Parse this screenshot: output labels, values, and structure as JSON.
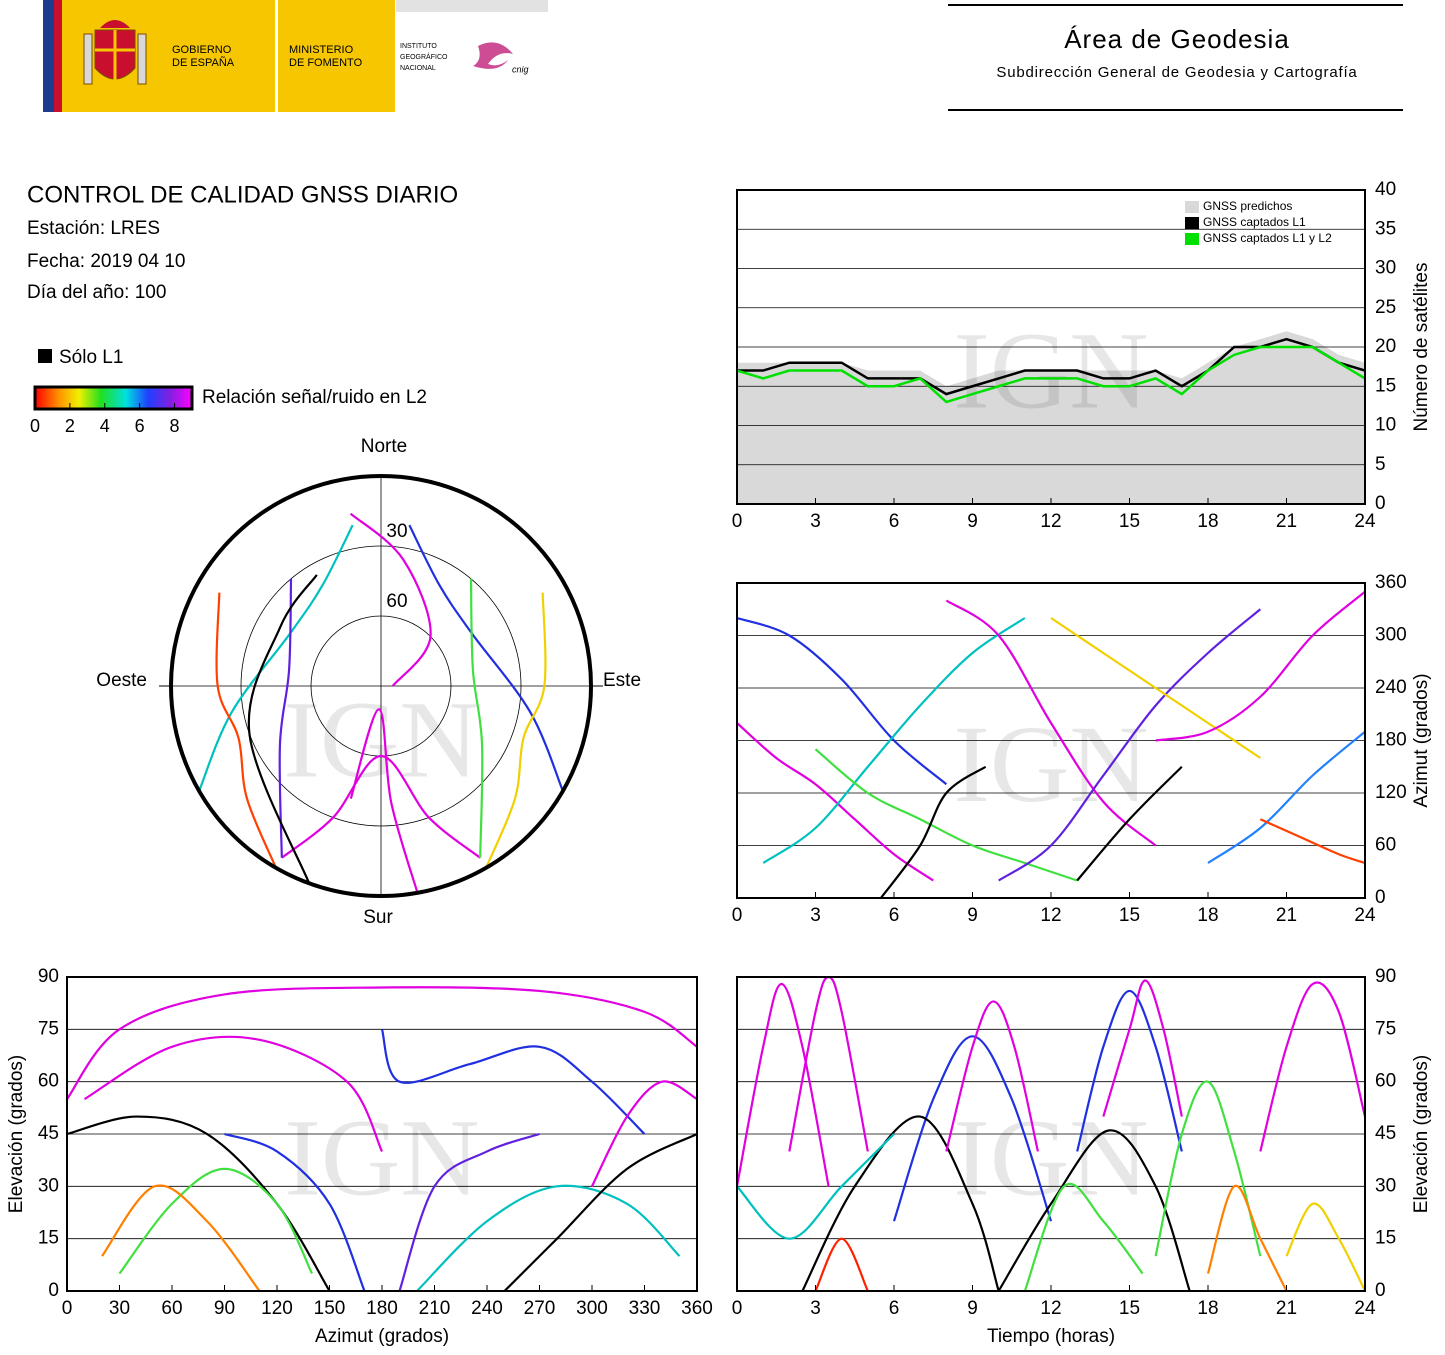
{
  "header": {
    "gov": [
      "GOBIERNO",
      "DE ESPAÑA"
    ],
    "ministry": [
      "MINISTERIO",
      "DE FOMENTO"
    ],
    "institute": [
      "INSTITUTO",
      "GEOGRÁFICO",
      "NACIONAL"
    ],
    "cnig": "cnig",
    "area": "Área de Geodesia",
    "subarea": "Subdirección General de Geodesia y Cartografía"
  },
  "report": {
    "title": "CONTROL DE CALIDAD GNSS DIARIO",
    "station": "Estación: LRES",
    "date": "Fecha: 2019 04 10",
    "doy": "Día del año: 100"
  },
  "legend": {
    "l1_only": "Sólo L1",
    "l1_color": "#000000",
    "snr_label": "Relación señal/ruido en L2",
    "snr_range": [
      0,
      9
    ],
    "snr_ticks": [
      0,
      2,
      4,
      6,
      8
    ]
  },
  "watermark": "IGN",
  "chart_data": [
    {
      "type": "line",
      "ylabel": "Número de satélites",
      "y_axis_side": "right",
      "xlim": [
        0,
        24
      ],
      "xticks": [
        0,
        3,
        6,
        9,
        12,
        15,
        18,
        21,
        24
      ],
      "ylim": [
        0,
        40
      ],
      "yticks": [
        0,
        5,
        10,
        15,
        20,
        25,
        30,
        35,
        40
      ],
      "grid": true,
      "legend": "upper right",
      "series": [
        {
          "name": "GNSS predichos",
          "color": "#d9d9d9",
          "style": "area",
          "x": [
            0,
            1,
            2,
            3,
            4,
            5,
            6,
            7,
            8,
            9,
            10,
            11,
            12,
            13,
            14,
            15,
            16,
            17,
            18,
            19,
            20,
            21,
            22,
            23,
            24
          ],
          "values": [
            18,
            18,
            18,
            18,
            18,
            17,
            17,
            17,
            15,
            16,
            17,
            17,
            17,
            17,
            17,
            17,
            17,
            16,
            18,
            20,
            21,
            22,
            21,
            19,
            18
          ]
        },
        {
          "name": "GNSS captados L1",
          "color": "#000000",
          "style": "line",
          "x": [
            0,
            1,
            2,
            3,
            4,
            5,
            6,
            7,
            8,
            9,
            10,
            11,
            12,
            13,
            14,
            15,
            16,
            17,
            18,
            19,
            20,
            21,
            22,
            23,
            24
          ],
          "values": [
            17,
            17,
            18,
            18,
            18,
            16,
            16,
            16,
            14,
            15,
            16,
            17,
            17,
            17,
            16,
            16,
            17,
            15,
            17,
            20,
            20,
            21,
            20,
            18,
            17
          ]
        },
        {
          "name": "GNSS captados L1 y L2",
          "color": "#00e000",
          "style": "line",
          "x": [
            0,
            1,
            2,
            3,
            4,
            5,
            6,
            7,
            8,
            9,
            10,
            11,
            12,
            13,
            14,
            15,
            16,
            17,
            18,
            19,
            20,
            21,
            22,
            23,
            24
          ],
          "values": [
            17,
            16,
            17,
            17,
            17,
            15,
            15,
            16,
            13,
            14,
            15,
            16,
            16,
            16,
            15,
            15,
            16,
            14,
            17,
            19,
            20,
            20,
            20,
            18,
            16
          ]
        }
      ]
    },
    {
      "type": "line",
      "ylabel": "Azimut (grados)",
      "y_axis_side": "right",
      "xlim": [
        0,
        24
      ],
      "xticks": [
        0,
        3,
        6,
        9,
        12,
        15,
        18,
        21,
        24
      ],
      "ylim": [
        0,
        360
      ],
      "yticks": [
        0,
        60,
        120,
        180,
        240,
        300,
        360
      ],
      "grid": true,
      "series": [
        {
          "color": "#e000e0",
          "x": [
            0,
            1.5,
            3,
            4.5,
            6,
            7.5
          ],
          "values": [
            200,
            160,
            130,
            90,
            50,
            20
          ]
        },
        {
          "color": "#2030e0",
          "x": [
            0,
            2,
            4,
            6,
            8
          ],
          "values": [
            320,
            300,
            250,
            180,
            130
          ]
        },
        {
          "color": "#00c0c0",
          "x": [
            1,
            3,
            5,
            7,
            9,
            11
          ],
          "values": [
            40,
            80,
            150,
            220,
            280,
            320
          ]
        },
        {
          "color": "#40e040",
          "x": [
            3,
            5,
            7,
            9,
            11,
            13
          ],
          "values": [
            170,
            120,
            90,
            60,
            40,
            20
          ]
        },
        {
          "color": "#000000",
          "x": [
            5.5,
            7,
            8,
            9.5
          ],
          "values": [
            0,
            60,
            120,
            150
          ]
        },
        {
          "color": "#e000e0",
          "x": [
            8,
            10,
            12,
            14,
            16
          ],
          "values": [
            340,
            300,
            200,
            110,
            60
          ]
        },
        {
          "color": "#6020e0",
          "x": [
            10,
            12,
            14,
            16,
            18,
            20
          ],
          "values": [
            20,
            60,
            140,
            220,
            280,
            330
          ]
        },
        {
          "color": "#f0d000",
          "x": [
            12,
            14,
            16,
            18,
            20
          ],
          "values": [
            320,
            280,
            240,
            200,
            160
          ]
        },
        {
          "color": "#e000e0",
          "x": [
            16,
            18,
            20,
            22,
            24
          ],
          "values": [
            180,
            190,
            230,
            300,
            350
          ]
        },
        {
          "color": "#2080ff",
          "x": [
            18,
            20,
            22,
            24
          ],
          "values": [
            40,
            80,
            140,
            190
          ]
        },
        {
          "color": "#ff4000",
          "x": [
            20,
            21.5,
            23,
            24
          ],
          "values": [
            90,
            70,
            50,
            40
          ]
        },
        {
          "color": "#000000",
          "x": [
            13,
            15,
            17
          ],
          "values": [
            20,
            90,
            150
          ]
        }
      ]
    },
    {
      "type": "polar",
      "directions": {
        "north": "Norte",
        "south": "Sur",
        "east": "Este",
        "west": "Oeste"
      },
      "rlim": [
        0,
        90
      ],
      "rings": [
        30,
        60
      ],
      "series": [
        {
          "color": "#e000e0",
          "az": [
            150,
            160,
            180,
            200,
            210
          ],
          "el": [
            5,
            30,
            60,
            30,
            5
          ]
        },
        {
          "color": "#2030e0",
          "az": [
            120,
            100,
            60,
            30,
            10
          ],
          "el": [
            0,
            25,
            45,
            40,
            20
          ]
        },
        {
          "color": "#00c0c0",
          "az": [
            240,
            260,
            300,
            330,
            350
          ],
          "el": [
            0,
            25,
            45,
            40,
            20
          ]
        },
        {
          "color": "#e000e0",
          "az": [
            170,
            175,
            185,
            195
          ],
          "el": [
            0,
            40,
            80,
            40
          ]
        },
        {
          "color": "#40e040",
          "az": [
            40,
            80,
            120,
            150
          ],
          "el": [
            30,
            50,
            40,
            5
          ]
        },
        {
          "color": "#6020e0",
          "az": [
            320,
            280,
            240,
            210
          ],
          "el": [
            30,
            50,
            40,
            5
          ]
        },
        {
          "color": "#000000",
          "az": [
            200,
            250,
            300,
            330
          ],
          "el": [
            0,
            30,
            40,
            35
          ]
        },
        {
          "color": "#f0d000",
          "az": [
            60,
            90,
            110,
            130,
            150
          ],
          "el": [
            10,
            20,
            25,
            15,
            0
          ]
        },
        {
          "color": "#ff4000",
          "az": [
            300,
            270,
            250,
            230,
            210
          ],
          "el": [
            10,
            20,
            25,
            15,
            0
          ]
        },
        {
          "color": "#e000e0",
          "az": [
            350,
            10,
            45,
            90
          ],
          "el": [
            15,
            35,
            60,
            85
          ]
        }
      ]
    },
    {
      "type": "line",
      "xlabel": "Azimut (grados)",
      "ylabel": "Elevación (grados)",
      "y_axis_side": "left",
      "xlim": [
        0,
        360
      ],
      "xticks": [
        0,
        30,
        60,
        90,
        120,
        150,
        180,
        210,
        240,
        270,
        300,
        330,
        360
      ],
      "ylim": [
        0,
        90
      ],
      "yticks": [
        0,
        15,
        30,
        45,
        60,
        75,
        90
      ],
      "grid": true,
      "series": [
        {
          "color": "#000000",
          "x": [
            0,
            40,
            80,
            120,
            150
          ],
          "values": [
            45,
            50,
            45,
            25,
            0
          ]
        },
        {
          "color": "#e000e0",
          "x": [
            10,
            60,
            110,
            160,
            180
          ],
          "values": [
            55,
            70,
            72,
            60,
            40
          ]
        },
        {
          "color": "#40e040",
          "x": [
            30,
            60,
            90,
            120,
            140
          ],
          "values": [
            5,
            25,
            35,
            25,
            5
          ]
        },
        {
          "color": "#2030e0",
          "x": [
            180,
            190,
            230,
            270,
            300,
            330
          ],
          "values": [
            75,
            60,
            65,
            70,
            60,
            45
          ]
        },
        {
          "color": "#00c0c0",
          "x": [
            200,
            240,
            280,
            320,
            350
          ],
          "values": [
            0,
            20,
            30,
            25,
            10
          ]
        },
        {
          "color": "#000000",
          "x": [
            250,
            280,
            320,
            360
          ],
          "values": [
            0,
            15,
            35,
            45
          ]
        },
        {
          "color": "#e000e0",
          "x": [
            0,
            30,
            90,
            180,
            270,
            330,
            360
          ],
          "values": [
            55,
            75,
            85,
            87,
            86,
            80,
            70
          ]
        },
        {
          "color": "#2030e0",
          "x": [
            90,
            120,
            150,
            170
          ],
          "values": [
            45,
            40,
            25,
            0
          ]
        },
        {
          "color": "#6020e0",
          "x": [
            190,
            210,
            240,
            270
          ],
          "values": [
            0,
            30,
            40,
            45
          ]
        },
        {
          "color": "#e000e0",
          "x": [
            300,
            320,
            340,
            360
          ],
          "values": [
            30,
            50,
            60,
            55
          ]
        },
        {
          "color": "#ff8000",
          "x": [
            20,
            50,
            80,
            110
          ],
          "values": [
            10,
            30,
            20,
            0
          ]
        }
      ]
    },
    {
      "type": "line",
      "xlabel": "Tiempo (horas)",
      "ylabel": "Elevación (grados)",
      "y_axis_side": "right",
      "xlim": [
        0,
        24
      ],
      "xticks": [
        0,
        3,
        6,
        9,
        12,
        15,
        18,
        21,
        24
      ],
      "ylim": [
        0,
        90
      ],
      "yticks": [
        0,
        15,
        30,
        45,
        60,
        75,
        90
      ],
      "grid": true,
      "series": [
        {
          "color": "#e000e0",
          "x": [
            0,
            1,
            1.7,
            2.5,
            3.5
          ],
          "values": [
            30,
            70,
            88,
            70,
            30
          ]
        },
        {
          "color": "#e000e0",
          "x": [
            2,
            3,
            3.5,
            4,
            5
          ],
          "values": [
            40,
            80,
            90,
            80,
            40
          ]
        },
        {
          "color": "#2030e0",
          "x": [
            6,
            7.5,
            9,
            10.5,
            12
          ],
          "values": [
            20,
            55,
            73,
            55,
            20
          ]
        },
        {
          "color": "#000000",
          "x": [
            2.5,
            4.5,
            7,
            9,
            10
          ],
          "values": [
            0,
            30,
            50,
            25,
            0
          ]
        },
        {
          "color": "#000000",
          "x": [
            10,
            12,
            14.2,
            16,
            17.3
          ],
          "values": [
            0,
            25,
            46,
            30,
            0
          ]
        },
        {
          "color": "#2030e0",
          "x": [
            13,
            14,
            15,
            16,
            17
          ],
          "values": [
            40,
            70,
            86,
            70,
            40
          ]
        },
        {
          "color": "#e000e0",
          "x": [
            14,
            15,
            15.6,
            16.3,
            17
          ],
          "values": [
            50,
            75,
            89,
            75,
            50
          ]
        },
        {
          "color": "#40e040",
          "x": [
            16,
            17,
            18,
            19,
            20
          ],
          "values": [
            10,
            45,
            60,
            40,
            10
          ]
        },
        {
          "color": "#e000e0",
          "x": [
            20,
            21,
            22,
            23,
            24
          ],
          "values": [
            40,
            70,
            88,
            80,
            50
          ]
        },
        {
          "color": "#00c0c0",
          "x": [
            0,
            2,
            4,
            6
          ],
          "values": [
            30,
            15,
            30,
            45
          ]
        },
        {
          "color": "#ff8000",
          "x": [
            18,
            19,
            20,
            21
          ],
          "values": [
            5,
            30,
            15,
            0
          ]
        },
        {
          "color": "#e000e0",
          "x": [
            8,
            9,
            9.8,
            10.6,
            11.5
          ],
          "values": [
            40,
            70,
            83,
            70,
            40
          ]
        },
        {
          "color": "#40e040",
          "x": [
            11,
            12.5,
            14,
            15.5
          ],
          "values": [
            0,
            30,
            20,
            5
          ]
        },
        {
          "color": "#ff2000",
          "x": [
            3,
            4,
            5
          ],
          "values": [
            0,
            15,
            0
          ]
        },
        {
          "color": "#f0d000",
          "x": [
            21,
            22,
            23,
            24
          ],
          "values": [
            10,
            25,
            15,
            0
          ]
        }
      ]
    }
  ]
}
